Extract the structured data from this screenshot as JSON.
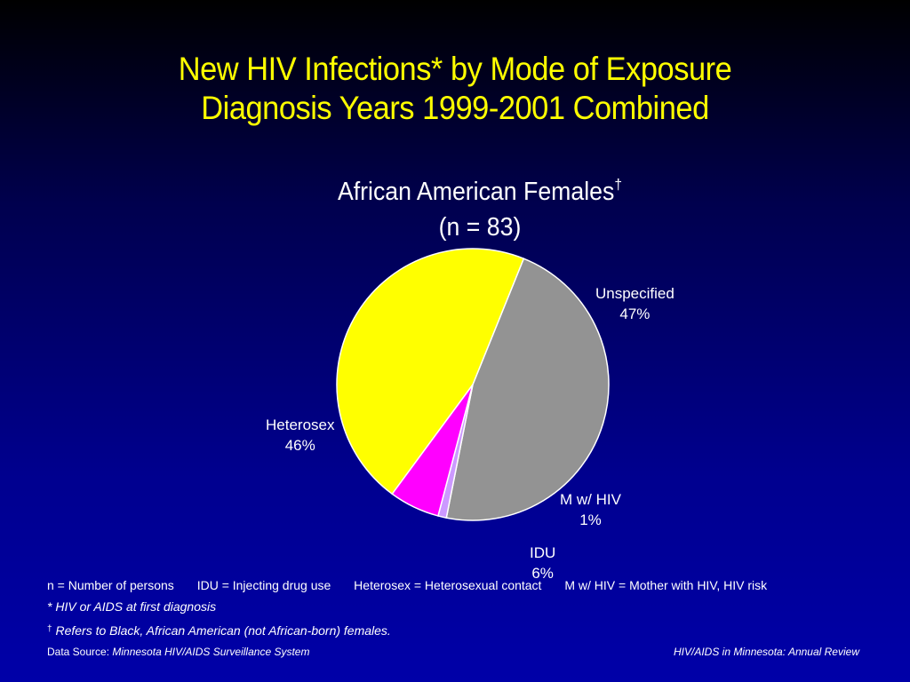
{
  "title": {
    "line1": "New HIV Infections* by Mode of Exposure",
    "line2": "Diagnosis Years 1999-2001 Combined"
  },
  "subtitle": {
    "line1": "African American Females",
    "dagger": "†",
    "line2": "(n = 83)"
  },
  "chart_data": {
    "type": "pie",
    "title": "African American Females† (n = 83)",
    "slices": [
      {
        "name": "Unspecified",
        "value": 47,
        "label": "47%",
        "color": "#939393"
      },
      {
        "name": "M w/ HIV",
        "value": 1,
        "label": "1%",
        "color": "#cc99ff"
      },
      {
        "name": "IDU",
        "value": 6,
        "label": "6%",
        "color": "#ff00ff"
      },
      {
        "name": "Heterosex",
        "value": 46,
        "label": "46%",
        "color": "#ffff00"
      }
    ]
  },
  "footnotes": {
    "definitions": [
      "n = Number of persons",
      "IDU = Injecting drug use",
      "Heterosex = Heterosexual contact",
      "M w/ HIV = Mother with HIV, HIV risk"
    ],
    "asterisk_note": "* HIV or AIDS at first diagnosis",
    "dagger_symbol": "†",
    "dagger_note": "Refers to Black, African American (not African-born) females."
  },
  "data_source": {
    "label": "Data Source: ",
    "value": "Minnesota HIV/AIDS Surveillance System"
  },
  "publication": "HIV/AIDS in Minnesota: Annual Review"
}
